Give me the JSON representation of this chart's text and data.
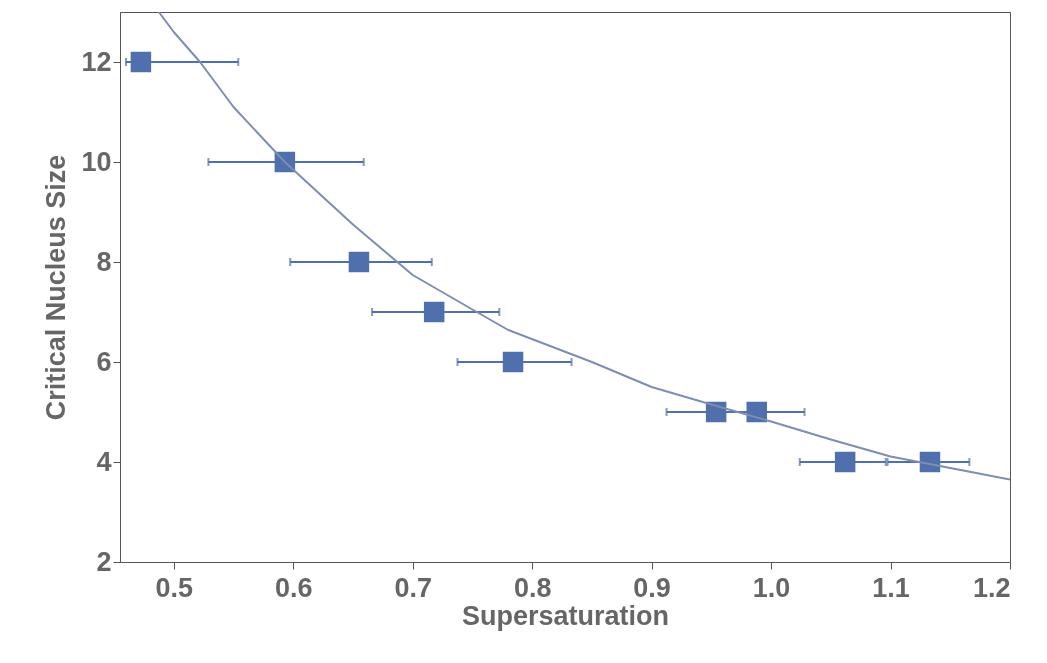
{
  "chart_data": {
    "type": "scatter",
    "xlabel": "Supersaturation",
    "ylabel": "Critical Nucleus Size",
    "xlim": [
      0.455,
      1.2
    ],
    "ylim": [
      2,
      13
    ],
    "xticks": [
      0.5,
      0.6,
      0.7,
      0.8,
      0.9,
      {
        "value": 1.0,
        "label": "1.0"
      },
      1.1,
      1.2
    ],
    "yticks": [
      2,
      4,
      6,
      8,
      10,
      12
    ],
    "grid": false,
    "marker": "square",
    "series": [
      {
        "color": "#4f6fad",
        "x": [
          0.4725,
          0.593,
          0.655,
          0.718,
          0.784,
          0.954,
          0.988,
          1.062,
          1.133
        ],
        "values": [
          12,
          10,
          8,
          7,
          6,
          5,
          5,
          4,
          4
        ],
        "xerrors": [
          [
            0.46,
            0.554
          ],
          [
            0.529,
            0.659
          ],
          [
            0.5975,
            0.716
          ],
          [
            0.666,
            0.7725
          ],
          [
            0.7375,
            0.833
          ],
          [
            0.9125,
            0.954
          ],
          [
            0.948,
            1.028
          ],
          [
            1.024,
            1.096
          ],
          [
            1.0975,
            1.166
          ]
        ]
      },
      {
        "type": "line",
        "color": "#7d8db3",
        "marker": "none",
        "line_style": "solid",
        "x": [
          0.4875,
          0.5,
          0.522,
          0.55,
          0.593,
          0.65,
          0.7,
          0.75,
          0.78,
          0.85,
          0.9,
          0.95,
          1.0,
          1.05,
          1.1,
          1.15,
          1.2
        ],
        "values": [
          13,
          12.6,
          12,
          11.1,
          10,
          8.75,
          7.74,
          7.05,
          6.64,
          6.0,
          5.5,
          5.15,
          4.81,
          4.45,
          4.11,
          3.88,
          3.65
        ]
      }
    ]
  }
}
